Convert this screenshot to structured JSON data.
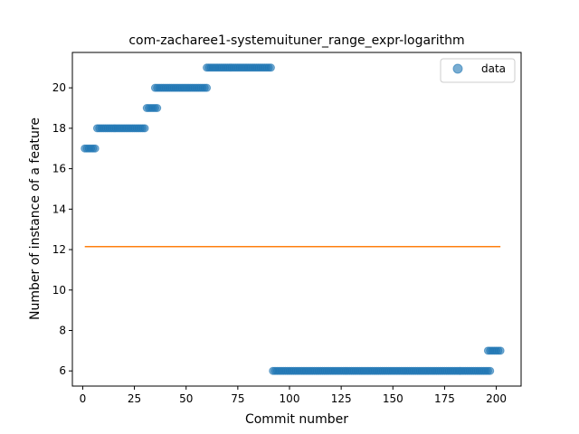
{
  "chart_data": {
    "type": "scatter",
    "title": "com-zacharee1-systemuituner_range_expr-logarithm",
    "xlabel": "Commit number",
    "ylabel": "Number of instance of a feature",
    "xlim": [
      -5,
      212
    ],
    "ylim": [
      5.25,
      21.75
    ],
    "xticks": [
      0,
      25,
      50,
      75,
      100,
      125,
      150,
      175,
      200
    ],
    "yticks": [
      6,
      8,
      10,
      12,
      14,
      16,
      18,
      20
    ],
    "grid": false,
    "legend": {
      "position": "top-right",
      "entries": [
        "data"
      ]
    },
    "colors": {
      "points": "#1f77b4",
      "fit_line": "#ff7f0e"
    },
    "series": [
      {
        "name": "data",
        "kind": "scatter",
        "segments": [
          {
            "x_start": 1,
            "x_end": 6,
            "y": 17
          },
          {
            "x_start": 7,
            "x_end": 30,
            "y": 18
          },
          {
            "x_start": 31,
            "x_end": 36,
            "y": 19
          },
          {
            "x_start": 35,
            "x_end": 60,
            "y": 20
          },
          {
            "x_start": 60,
            "x_end": 91,
            "y": 21
          },
          {
            "x_start": 92,
            "x_end": 197,
            "y": 6
          },
          {
            "x_start": 196,
            "x_end": 202,
            "y": 7
          }
        ]
      },
      {
        "kind": "line",
        "x": [
          1,
          202
        ],
        "y": [
          12.15,
          12.15
        ]
      }
    ]
  }
}
